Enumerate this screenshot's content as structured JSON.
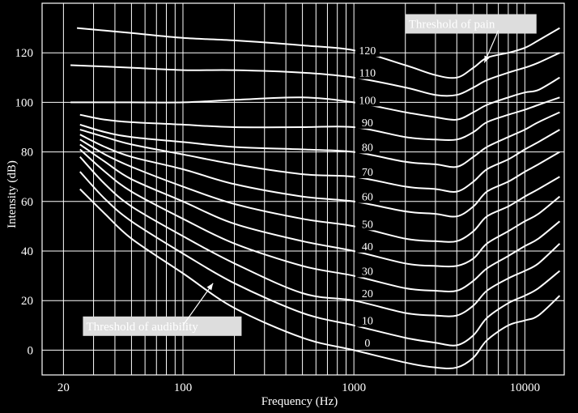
{
  "colors": {
    "background": "#000000",
    "foreground": "#ffffff",
    "annotation_box": "#dddddd",
    "annotation_text": "#ffffff"
  },
  "chart_data": {
    "type": "line",
    "xscale": "log",
    "xlim": [
      15,
      17000
    ],
    "ylim": [
      -10,
      140
    ],
    "grid": true,
    "xlabel": "Frequency (Hz)",
    "ylabel": "Intensity (dB)",
    "xticks": [
      {
        "value": 20,
        "label": "20"
      },
      {
        "value": 100,
        "label": "100"
      },
      {
        "value": 1000,
        "label": "1000"
      },
      {
        "value": 10000,
        "label": "10000"
      }
    ],
    "yticks": [
      0,
      20,
      40,
      60,
      80,
      100,
      120
    ],
    "grid_x": [
      20,
      30,
      40,
      50,
      60,
      70,
      80,
      90,
      100,
      200,
      300,
      400,
      500,
      600,
      700,
      800,
      900,
      1000,
      2000,
      3000,
      4000,
      5000,
      6000,
      7000,
      8000,
      9000,
      10000
    ],
    "grid_y": [
      0,
      20,
      40,
      60,
      80,
      100,
      120
    ],
    "series": [
      {
        "name": "0",
        "label_at": [
          1200,
          3
        ],
        "points": [
          [
            25,
            65
          ],
          [
            35,
            55
          ],
          [
            50,
            45
          ],
          [
            100,
            31
          ],
          [
            200,
            17
          ],
          [
            500,
            5
          ],
          [
            1000,
            0
          ],
          [
            2000,
            -5
          ],
          [
            3000,
            -7
          ],
          [
            4000,
            -7
          ],
          [
            5000,
            -3
          ],
          [
            6000,
            4
          ],
          [
            8000,
            10
          ],
          [
            10000,
            12
          ],
          [
            12000,
            14
          ],
          [
            16000,
            22
          ]
        ]
      },
      {
        "name": "10",
        "label_at": [
          1200,
          12
        ],
        "points": [
          [
            25,
            72
          ],
          [
            35,
            61
          ],
          [
            50,
            52
          ],
          [
            100,
            39
          ],
          [
            200,
            27
          ],
          [
            500,
            15
          ],
          [
            1000,
            10
          ],
          [
            2000,
            5
          ],
          [
            3000,
            3
          ],
          [
            4000,
            2
          ],
          [
            5000,
            6
          ],
          [
            6000,
            13
          ],
          [
            8000,
            19
          ],
          [
            10000,
            22
          ],
          [
            12000,
            25
          ],
          [
            16000,
            32
          ]
        ]
      },
      {
        "name": "20",
        "label_at": [
          1200,
          23
        ],
        "points": [
          [
            25,
            78
          ],
          [
            35,
            67
          ],
          [
            50,
            58
          ],
          [
            100,
            46
          ],
          [
            200,
            35
          ],
          [
            500,
            23
          ],
          [
            1000,
            20
          ],
          [
            2000,
            15
          ],
          [
            3000,
            14
          ],
          [
            4000,
            14
          ],
          [
            5000,
            18
          ],
          [
            6000,
            24
          ],
          [
            8000,
            29
          ],
          [
            10000,
            32
          ],
          [
            12000,
            35
          ],
          [
            16000,
            43
          ]
        ]
      },
      {
        "name": "30",
        "label_at": [
          1200,
          32
        ],
        "points": [
          [
            25,
            81
          ],
          [
            35,
            72
          ],
          [
            50,
            64
          ],
          [
            100,
            53
          ],
          [
            200,
            43
          ],
          [
            500,
            34
          ],
          [
            1000,
            30
          ],
          [
            2000,
            25
          ],
          [
            3000,
            24
          ],
          [
            4000,
            24
          ],
          [
            5000,
            28
          ],
          [
            6000,
            33
          ],
          [
            8000,
            38
          ],
          [
            10000,
            42
          ],
          [
            12000,
            45
          ],
          [
            16000,
            52
          ]
        ]
      },
      {
        "name": "40",
        "label_at": [
          1200,
          42
        ],
        "points": [
          [
            25,
            83
          ],
          [
            35,
            76
          ],
          [
            50,
            69
          ],
          [
            100,
            60
          ],
          [
            200,
            51
          ],
          [
            500,
            44
          ],
          [
            1000,
            40
          ],
          [
            2000,
            35
          ],
          [
            3000,
            34
          ],
          [
            4000,
            34
          ],
          [
            5000,
            37
          ],
          [
            6000,
            43
          ],
          [
            8000,
            48
          ],
          [
            10000,
            52
          ],
          [
            12000,
            55
          ],
          [
            16000,
            62
          ]
        ]
      },
      {
        "name": "50",
        "label_at": [
          1200,
          51
        ],
        "points": [
          [
            25,
            85
          ],
          [
            35,
            79
          ],
          [
            50,
            74
          ],
          [
            100,
            66
          ],
          [
            200,
            59
          ],
          [
            500,
            53
          ],
          [
            1000,
            50
          ],
          [
            2000,
            45
          ],
          [
            3000,
            44
          ],
          [
            4000,
            44
          ],
          [
            5000,
            48
          ],
          [
            6000,
            54
          ],
          [
            8000,
            58
          ],
          [
            10000,
            62
          ],
          [
            12000,
            65
          ],
          [
            16000,
            70
          ]
        ]
      },
      {
        "name": "60",
        "label_at": [
          1200,
          62
        ],
        "points": [
          [
            25,
            87
          ],
          [
            35,
            82
          ],
          [
            50,
            78
          ],
          [
            100,
            73
          ],
          [
            200,
            67
          ],
          [
            500,
            62
          ],
          [
            1000,
            60
          ],
          [
            2000,
            56
          ],
          [
            3000,
            55
          ],
          [
            4000,
            54
          ],
          [
            5000,
            58
          ],
          [
            6000,
            64
          ],
          [
            8000,
            68
          ],
          [
            10000,
            72
          ],
          [
            12000,
            75
          ],
          [
            16000,
            80
          ]
        ]
      },
      {
        "name": "70",
        "label_at": [
          1200,
          72
        ],
        "points": [
          [
            25,
            89
          ],
          [
            35,
            86
          ],
          [
            50,
            83
          ],
          [
            100,
            79
          ],
          [
            200,
            75
          ],
          [
            500,
            71
          ],
          [
            1000,
            70
          ],
          [
            2000,
            66
          ],
          [
            3000,
            65
          ],
          [
            4000,
            64
          ],
          [
            5000,
            68
          ],
          [
            6000,
            73
          ],
          [
            8000,
            77
          ],
          [
            10000,
            81
          ],
          [
            12000,
            84
          ],
          [
            16000,
            89
          ]
        ]
      },
      {
        "name": "80",
        "label_at": [
          1200,
          82
        ],
        "points": [
          [
            25,
            91
          ],
          [
            35,
            88
          ],
          [
            50,
            86
          ],
          [
            100,
            84
          ],
          [
            200,
            82
          ],
          [
            500,
            81
          ],
          [
            1000,
            80
          ],
          [
            2000,
            76
          ],
          [
            3000,
            75
          ],
          [
            4000,
            74
          ],
          [
            5000,
            78
          ],
          [
            6000,
            82
          ],
          [
            8000,
            86
          ],
          [
            10000,
            89
          ],
          [
            12000,
            92
          ],
          [
            16000,
            96
          ]
        ]
      },
      {
        "name": "90",
        "label_at": [
          1200,
          92
        ],
        "points": [
          [
            25,
            95
          ],
          [
            35,
            93
          ],
          [
            50,
            92
          ],
          [
            100,
            91
          ],
          [
            200,
            90
          ],
          [
            500,
            90
          ],
          [
            1000,
            90
          ],
          [
            2000,
            86
          ],
          [
            3000,
            85
          ],
          [
            4000,
            85
          ],
          [
            5000,
            88
          ],
          [
            6000,
            92
          ],
          [
            8000,
            95
          ],
          [
            10000,
            97
          ],
          [
            12000,
            99
          ],
          [
            16000,
            102
          ]
        ]
      },
      {
        "name": "100",
        "label_at": [
          1200,
          101
        ],
        "points": [
          [
            22,
            100
          ],
          [
            50,
            100
          ],
          [
            100,
            100
          ],
          [
            200,
            101
          ],
          [
            500,
            102
          ],
          [
            1000,
            100
          ],
          [
            2000,
            96
          ],
          [
            3000,
            94
          ],
          [
            4000,
            93
          ],
          [
            5000,
            96
          ],
          [
            6000,
            99
          ],
          [
            8000,
            102
          ],
          [
            10000,
            104
          ],
          [
            12000,
            105
          ],
          [
            16000,
            110
          ]
        ]
      },
      {
        "name": "110",
        "label_at": [
          1200,
          112
        ],
        "points": [
          [
            22,
            115
          ],
          [
            50,
            114
          ],
          [
            100,
            113
          ],
          [
            200,
            113
          ],
          [
            500,
            112
          ],
          [
            1000,
            110
          ],
          [
            2000,
            106
          ],
          [
            3000,
            103
          ],
          [
            4000,
            103
          ],
          [
            5000,
            106
          ],
          [
            6000,
            109
          ],
          [
            8000,
            112
          ],
          [
            10000,
            114
          ],
          [
            12000,
            116
          ],
          [
            16000,
            120
          ]
        ]
      },
      {
        "name": "120",
        "label_at": [
          1200,
          121
        ],
        "points": [
          [
            24,
            130
          ],
          [
            50,
            128
          ],
          [
            100,
            126
          ],
          [
            200,
            125
          ],
          [
            500,
            123
          ],
          [
            1000,
            121
          ],
          [
            2000,
            115
          ],
          [
            3000,
            111
          ],
          [
            4000,
            110
          ],
          [
            5000,
            114
          ],
          [
            6000,
            118
          ],
          [
            8000,
            120
          ],
          [
            10000,
            122
          ],
          [
            12000,
            125
          ],
          [
            16000,
            130
          ]
        ]
      }
    ],
    "annotations": [
      {
        "text": "Threshold of pain",
        "box_at": [
          2000,
          132
        ],
        "arrow_from": [
          7000,
          129
        ],
        "arrow_to": [
          5800,
          116
        ]
      },
      {
        "text": "Threshold of audibility",
        "box_at": [
          26,
          10
        ],
        "arrow_from": [
          100,
          10
        ],
        "arrow_to": [
          150,
          27
        ]
      }
    ]
  }
}
